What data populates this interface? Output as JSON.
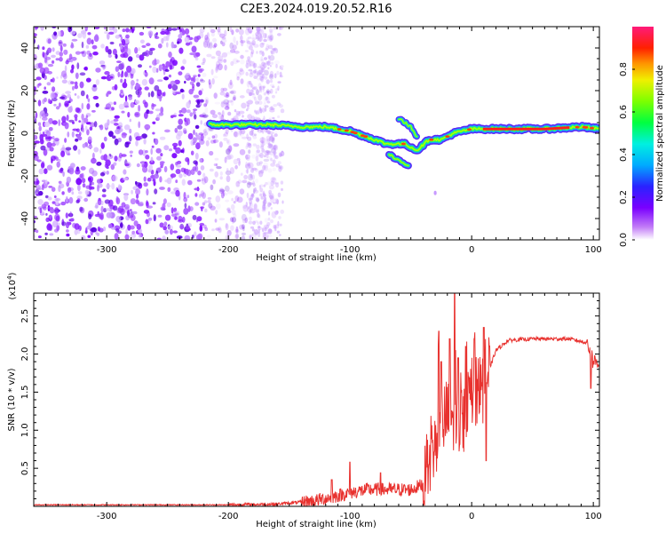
{
  "title": "C2E3.2024.019.20.52.R16",
  "chart_data": [
    {
      "type": "heatmap",
      "xlabel": "Height of straight line (km)",
      "ylabel": "Frequency (Hz)",
      "xlim": [
        -360,
        105
      ],
      "ylim": [
        -50,
        50
      ],
      "xticks": [
        "-300",
        "-200",
        "-100",
        "0",
        "100"
      ],
      "yticks": [
        "-40",
        "-20",
        "0",
        "20",
        "40"
      ],
      "noise_region_x": [
        -360,
        -160
      ],
      "signal_track": [
        {
          "x": -215,
          "y": 4
        },
        {
          "x": -190,
          "y": 4
        },
        {
          "x": -165,
          "y": 4
        },
        {
          "x": -140,
          "y": 3
        },
        {
          "x": -120,
          "y": 3
        },
        {
          "x": -100,
          "y": 1
        },
        {
          "x": -85,
          "y": -2
        },
        {
          "x": -70,
          "y": -5
        },
        {
          "x": -55,
          "y": -5
        },
        {
          "x": -45,
          "y": -8
        },
        {
          "x": -35,
          "y": -3
        },
        {
          "x": -25,
          "y": -3
        },
        {
          "x": -15,
          "y": 0
        },
        {
          "x": 0,
          "y": 2
        },
        {
          "x": 20,
          "y": 2
        },
        {
          "x": 60,
          "y": 2
        },
        {
          "x": 90,
          "y": 3
        },
        {
          "x": 105,
          "y": 2
        }
      ],
      "secondary_branch": [
        {
          "x": -60,
          "y": 7
        },
        {
          "x": -50,
          "y": 3
        },
        {
          "x": -45,
          "y": -2
        }
      ],
      "lower_branch": [
        {
          "x": -68,
          "y": -10
        },
        {
          "x": -60,
          "y": -13
        },
        {
          "x": -52,
          "y": -15
        }
      ],
      "colorbar": {
        "label": "Normalized spectral amplitude",
        "ticks": [
          "0.0",
          "0.2",
          "0.4",
          "0.6",
          "0.8"
        ],
        "range": [
          0,
          1
        ]
      }
    },
    {
      "type": "line",
      "xlabel": "Height of straight line (km)",
      "ylabel": "SNR (10 * v/v)",
      "yscale_label": "(x10",
      "yscale_exp": "4",
      "xlim": [
        -360,
        105
      ],
      "ylim": [
        0,
        2.8
      ],
      "xticks": [
        "-300",
        "-200",
        "-100",
        "0",
        "100"
      ],
      "yticks": [
        "0.5",
        "1.0",
        "1.5",
        "2.0",
        "2.5"
      ],
      "color": "#e8312e",
      "profile": [
        {
          "x": -360,
          "y": 0.02
        },
        {
          "x": -200,
          "y": 0.02
        },
        {
          "x": -160,
          "y": 0.03
        },
        {
          "x": -130,
          "y": 0.07
        },
        {
          "x": -110,
          "y": 0.14
        },
        {
          "x": -100,
          "y": 0.18
        },
        {
          "x": -85,
          "y": 0.22
        },
        {
          "x": -70,
          "y": 0.22
        },
        {
          "x": -50,
          "y": 0.22
        },
        {
          "x": -38,
          "y": 0.3
        },
        {
          "x": -30,
          "y": 0.9
        },
        {
          "x": -20,
          "y": 1.2
        },
        {
          "x": -10,
          "y": 1.1
        },
        {
          "x": 0,
          "y": 1.4
        },
        {
          "x": 10,
          "y": 1.6
        },
        {
          "x": 20,
          "y": 2.05
        },
        {
          "x": 30,
          "y": 2.18
        },
        {
          "x": 50,
          "y": 2.2
        },
        {
          "x": 80,
          "y": 2.2
        },
        {
          "x": 95,
          "y": 2.15
        },
        {
          "x": 100,
          "y": 1.9
        },
        {
          "x": 105,
          "y": 1.9
        }
      ],
      "spikes": [
        {
          "x": -115,
          "y": 0.35
        },
        {
          "x": -100,
          "y": 0.58
        },
        {
          "x": -75,
          "y": 0.44
        },
        {
          "x": -35,
          "y": 0.55
        },
        {
          "x": -27,
          "y": 2.3
        },
        {
          "x": -25,
          "y": 1.9
        },
        {
          "x": -18,
          "y": 2.2
        },
        {
          "x": -14,
          "y": 2.8
        },
        {
          "x": -11,
          "y": 1.95
        },
        {
          "x": -5,
          "y": 2.1
        },
        {
          "x": 2,
          "y": 2.2
        },
        {
          "x": 10,
          "y": 2.35
        },
        {
          "x": 12,
          "y": 0.6
        },
        {
          "x": 98,
          "y": 1.55
        }
      ]
    }
  ]
}
